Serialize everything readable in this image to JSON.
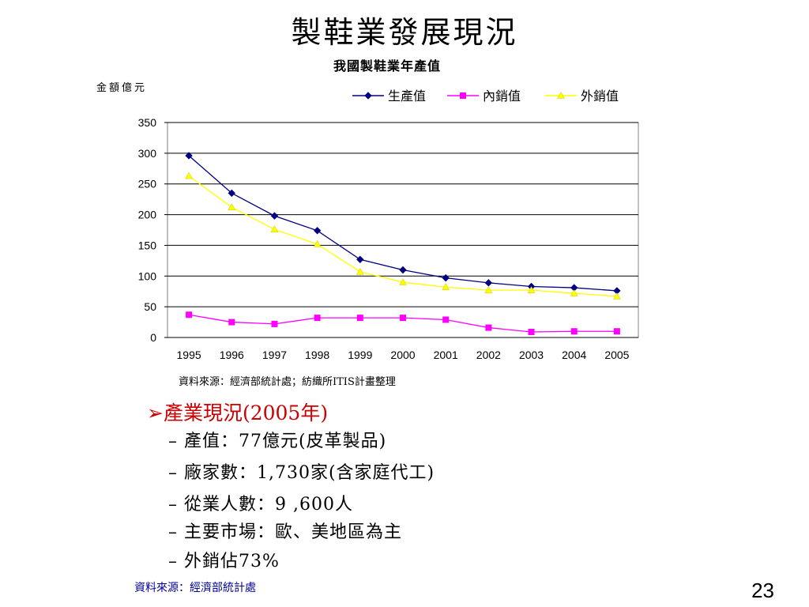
{
  "slide": {
    "title": "製鞋業發展現況",
    "page_number": "23",
    "footer_source": "資料來源：經濟部統計處"
  },
  "chart_data": {
    "type": "line",
    "title": "我國製鞋業年產值",
    "ylabel": "金額億元",
    "xlabel": "",
    "x": [
      "1995",
      "1996",
      "1997",
      "1998",
      "1999",
      "2000",
      "2001",
      "2002",
      "2003",
      "2004",
      "2005"
    ],
    "ylim": [
      0,
      350
    ],
    "yticks": [
      "0",
      "50",
      "100",
      "150",
      "200",
      "250",
      "300",
      "350"
    ],
    "grid": true,
    "legend_position": "top-right",
    "series": [
      {
        "name": "生產值",
        "color": "#000080",
        "marker": "diamond",
        "values": [
          296,
          235,
          198,
          174,
          127,
          110,
          97,
          89,
          83,
          81,
          76
        ]
      },
      {
        "name": "內銷值",
        "color": "#ff00ff",
        "marker": "square",
        "values": [
          37,
          25,
          22,
          32,
          32,
          32,
          29,
          16,
          9,
          10,
          10
        ]
      },
      {
        "name": "外銷值",
        "color": "#ffff00",
        "marker": "triangle",
        "values": [
          263,
          212,
          176,
          152,
          107,
          90,
          82,
          77,
          77,
          72,
          67
        ]
      }
    ],
    "source": "資料來源：經濟部統計處；紡織所ITIS計畫整理"
  },
  "bullets": {
    "heading": "產業現況(2005年)",
    "items": [
      "–  產值：77億元(皮革製品)",
      "–  廠家數：1,730家(含家庭代工)",
      "–  從業人數：9 ,600人",
      "–  主要市場：歐、美地區為主",
      "–  外銷佔73%"
    ]
  }
}
